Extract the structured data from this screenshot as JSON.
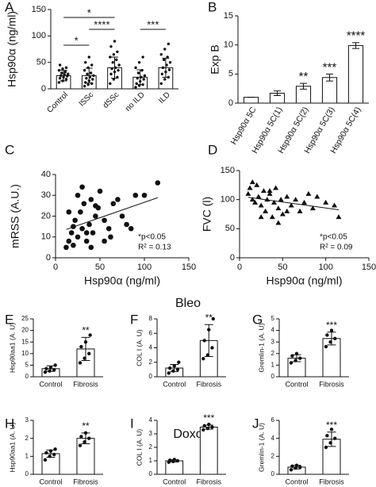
{
  "chart_data": [
    {
      "type": "bar",
      "label": "A",
      "ylabel": "Hsp90α (ng/ml)",
      "categories": [
        "Control",
        "lSSc",
        "dSSc",
        "no ILD",
        "ILD"
      ],
      "values": [
        25,
        25,
        40,
        22,
        40
      ],
      "errors": [
        10,
        14,
        20,
        14,
        18
      ],
      "points": [
        [
          12,
          15,
          18,
          20,
          22,
          24,
          25,
          27,
          28,
          30,
          32,
          35,
          38,
          40,
          45
        ],
        [
          5,
          8,
          10,
          12,
          15,
          18,
          20,
          22,
          25,
          28,
          30,
          35,
          40,
          45,
          50,
          60
        ],
        [
          10,
          18,
          22,
          28,
          32,
          35,
          38,
          40,
          45,
          50,
          55,
          60,
          65,
          70,
          80,
          90
        ],
        [
          3,
          6,
          8,
          10,
          14,
          18,
          20,
          22,
          25,
          30,
          35,
          40,
          50,
          60
        ],
        [
          10,
          18,
          22,
          28,
          32,
          36,
          40,
          45,
          50,
          55,
          60,
          65,
          75,
          85
        ]
      ],
      "ylim": [
        0,
        150
      ],
      "yticks": [
        0,
        50,
        100,
        150
      ],
      "annotations": [
        {
          "text": "*",
          "pair": [
            "Control",
            "lSSc"
          ]
        },
        {
          "text": "****",
          "pair": [
            "lSSc",
            "dSSc"
          ]
        },
        {
          "text": "*",
          "pair": [
            "Control",
            "dSSc"
          ]
        },
        {
          "text": "***",
          "pair": [
            "no ILD",
            "ILD"
          ]
        }
      ]
    },
    {
      "type": "bar",
      "label": "B",
      "ylabel": "Exp B",
      "categories": [
        "Hsp90α 5C",
        "Hsp90α 5C(1)",
        "Hsp90α 5C(2)",
        "Hsp90α 5C(3)",
        "Hsp90α 5C(4)"
      ],
      "values": [
        1,
        1.7,
        2.9,
        4.4,
        9.9
      ],
      "errors": [
        0,
        0.4,
        0.5,
        0.6,
        0.5
      ],
      "stars": [
        null,
        null,
        "**",
        "***",
        "****"
      ],
      "ylim": [
        0,
        15
      ],
      "yticks": [
        0,
        5,
        10,
        15
      ]
    },
    {
      "type": "scatter",
      "label": "C",
      "ylabel": "mRSS (A.U.)",
      "xlabel": "Hsp90α (ng/ml)",
      "marker": "circle",
      "x": [
        12,
        15,
        18,
        20,
        22,
        25,
        28,
        30,
        32,
        35,
        38,
        40,
        42,
        45,
        48,
        50,
        55,
        60,
        62,
        65,
        70,
        75,
        80,
        85,
        90,
        15,
        20,
        25,
        35,
        40,
        30,
        45,
        55,
        100,
        115
      ],
      "y": [
        5,
        8,
        12,
        6,
        18,
        10,
        22,
        14,
        26,
        8,
        16,
        28,
        12,
        20,
        24,
        32,
        18,
        14,
        10,
        26,
        28,
        20,
        16,
        14,
        30,
        22,
        15,
        30,
        12,
        5,
        34,
        25,
        8,
        30,
        36
      ],
      "xlim": [
        0,
        150
      ],
      "xticks": [
        0,
        50,
        100,
        150
      ],
      "ylim": [
        0,
        40
      ],
      "yticks": [
        0,
        10,
        20,
        30,
        40
      ],
      "notes": [
        "*p<0.05",
        "R² = 0.13"
      ]
    },
    {
      "type": "scatter",
      "label": "D",
      "ylabel": "FVC (l)",
      "xlabel": "Hsp90α (ng/ml)",
      "marker": "triangle",
      "x": [
        10,
        12,
        15,
        18,
        20,
        22,
        25,
        28,
        30,
        32,
        35,
        38,
        40,
        42,
        45,
        48,
        50,
        55,
        60,
        65,
        70,
        75,
        80,
        85,
        90,
        100,
        110,
        15,
        25,
        35,
        45,
        55,
        115
      ],
      "y": [
        110,
        120,
        100,
        95,
        125,
        105,
        90,
        115,
        80,
        100,
        110,
        70,
        95,
        120,
        85,
        100,
        75,
        105,
        90,
        100,
        80,
        95,
        110,
        85,
        105,
        95,
        90,
        130,
        70,
        115,
        60,
        80,
        70
      ],
      "xlim": [
        0,
        150
      ],
      "xticks": [
        0,
        50,
        100,
        150
      ],
      "ylim": [
        0,
        150
      ],
      "yticks": [
        0,
        50,
        100,
        150
      ],
      "notes": [
        "*p<0.05",
        "R² = 0.09"
      ]
    },
    {
      "type": "bar",
      "label": "E",
      "ylabel": "Hsp90aa1 (A. U)",
      "categories": [
        "Control",
        "Fibrosis"
      ],
      "values": [
        3.5,
        12
      ],
      "errors": [
        1.2,
        5
      ],
      "stars": [
        null,
        "**"
      ],
      "points": [
        [
          2,
          2.5,
          3,
          3.5,
          4,
          5
        ],
        [
          6,
          8,
          10,
          13,
          15,
          18
        ]
      ],
      "ylim": [
        0,
        25
      ],
      "yticks": [
        0,
        5,
        10,
        15,
        20,
        25
      ]
    },
    {
      "type": "bar",
      "label": "F",
      "ylabel": "COL I (A. U)",
      "categories": [
        "Control",
        "Fibrosis"
      ],
      "values": [
        1.2,
        5
      ],
      "errors": [
        0.5,
        2.2
      ],
      "stars": [
        null,
        "**"
      ],
      "points": [
        [
          0.5,
          0.8,
          1,
          1.2,
          1.5,
          2
        ],
        [
          2.5,
          3,
          4,
          5,
          6.5,
          8
        ]
      ],
      "ylim": [
        0,
        8
      ],
      "yticks": [
        0,
        2,
        4,
        6,
        8
      ]
    },
    {
      "type": "bar",
      "label": "G",
      "ylabel": "Gremlin-1 (A. U)",
      "categories": [
        "Control",
        "Fibrosis"
      ],
      "values": [
        1.6,
        3.3
      ],
      "errors": [
        0.3,
        0.55
      ],
      "stars": [
        null,
        "***"
      ],
      "points": [
        [
          1.2,
          1.4,
          1.6,
          1.8,
          2.0
        ],
        [
          2.6,
          3.0,
          3.3,
          3.6,
          4.0
        ]
      ],
      "ylim": [
        0,
        5
      ],
      "yticks": [
        0,
        1,
        2,
        3,
        4,
        5
      ]
    },
    {
      "type": "bar",
      "label": "H",
      "ylabel": "Hsp90aa1 (A. U)",
      "categories": [
        "Control",
        "Fibrosis"
      ],
      "values": [
        1.15,
        2.0
      ],
      "errors": [
        0.2,
        0.3
      ],
      "stars": [
        null,
        "**"
      ],
      "points": [
        [
          0.8,
          1.0,
          1.1,
          1.2,
          1.3,
          1.4
        ],
        [
          1.6,
          1.8,
          2.0,
          2.1,
          2.3
        ]
      ],
      "ylim": [
        0,
        3
      ],
      "yticks": [
        0,
        1,
        2,
        3
      ]
    },
    {
      "type": "bar",
      "label": "I",
      "ylabel": "COL I (A. U)",
      "categories": [
        "Control",
        "Fibrosis"
      ],
      "values": [
        1.0,
        3.5
      ],
      "errors": [
        0.08,
        0.15
      ],
      "stars": [
        null,
        "***"
      ],
      "points": [
        [
          0.9,
          0.95,
          1.0,
          1.05,
          1.1
        ],
        [
          3.3,
          3.4,
          3.5,
          3.6,
          3.7
        ]
      ],
      "ylim": [
        0,
        4
      ],
      "yticks": [
        0,
        1,
        2,
        3,
        4
      ]
    },
    {
      "type": "bar",
      "label": "J",
      "ylabel": "Gremlin-1 (A. U)",
      "categories": [
        "Control",
        "Fibrosis"
      ],
      "values": [
        0.8,
        3.9
      ],
      "errors": [
        0.2,
        0.8
      ],
      "stars": [
        null,
        "***"
      ],
      "points": [
        [
          0.5,
          0.7,
          0.8,
          0.9,
          1.0
        ],
        [
          3.0,
          3.5,
          4.0,
          4.3,
          5.0
        ]
      ],
      "ylim": [
        0,
        6
      ],
      "yticks": [
        0,
        2,
        4,
        6
      ]
    }
  ],
  "section_labels": [
    "Bleo",
    "Doxo"
  ]
}
